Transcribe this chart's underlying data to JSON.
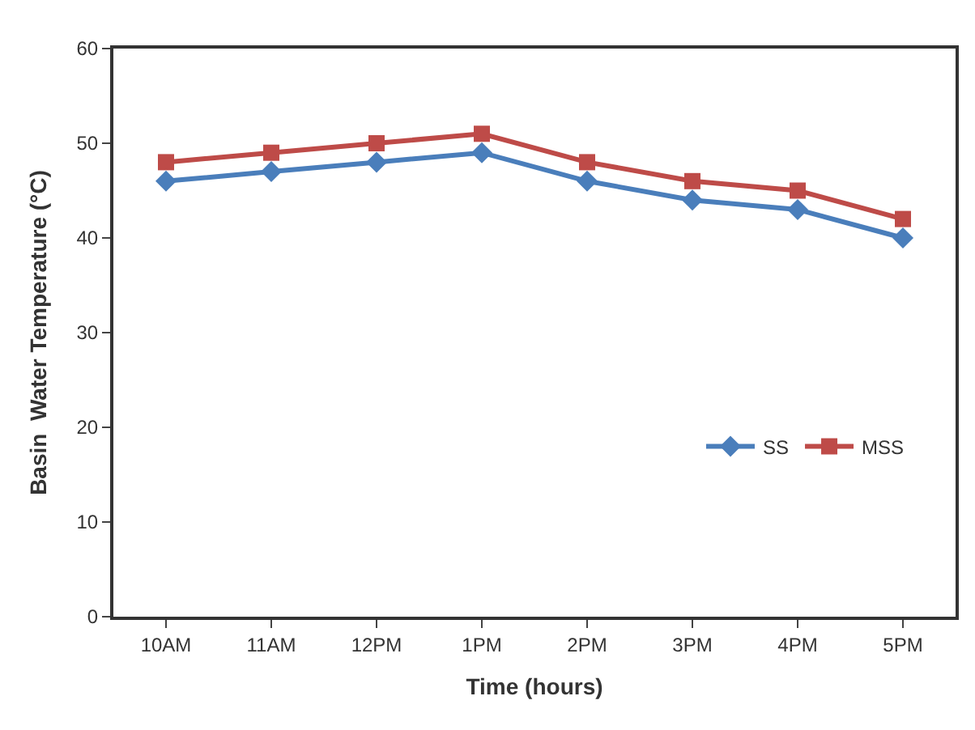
{
  "chart_data": {
    "type": "line",
    "xlabel": "Time (hours)",
    "ylabel": "Basin  Water Temperature (°C)",
    "categories": [
      "10AM",
      "11AM",
      "12PM",
      "1PM",
      "2PM",
      "3PM",
      "4PM",
      "5PM"
    ],
    "ylim": [
      0,
      60
    ],
    "yticks": [
      0,
      10,
      20,
      30,
      40,
      50,
      60
    ],
    "legend": "right",
    "line_style": "solid",
    "series": [
      {
        "name": "SS",
        "color": "#4a7ebb",
        "marker": "diamond",
        "values": [
          46,
          47,
          48,
          49,
          46,
          44,
          43,
          40
        ]
      },
      {
        "name": "MSS",
        "color": "#be4b48",
        "marker": "square",
        "values": [
          48,
          49,
          50,
          51,
          48,
          46,
          45,
          42
        ]
      }
    ]
  }
}
